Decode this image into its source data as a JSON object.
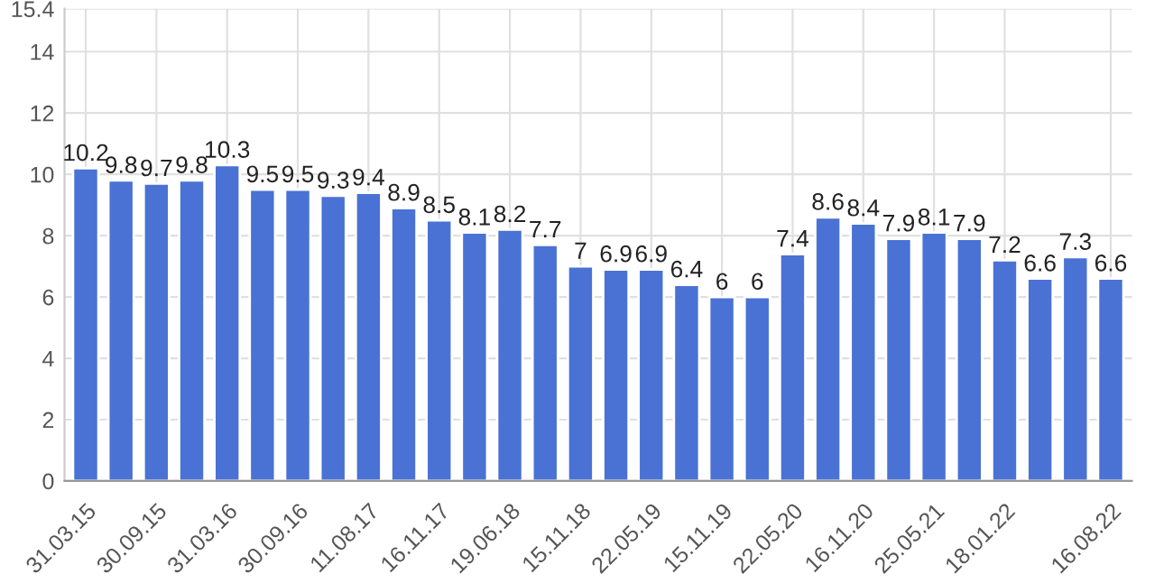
{
  "chart_data": {
    "type": "bar",
    "categories": [
      "31.03.15",
      null,
      "30.09.15",
      null,
      "31.03.16",
      null,
      "30.09.16",
      null,
      "11.08.17",
      null,
      "16.11.17",
      null,
      "19.06.18",
      null,
      "15.11.18",
      null,
      "22.05.19",
      null,
      "15.11.19",
      null,
      "22.05.20",
      null,
      "16.11.20",
      null,
      "25.05.21",
      null,
      "18.01.22",
      null,
      null,
      "16.08.22"
    ],
    "values": [
      10.2,
      9.8,
      9.7,
      9.8,
      10.3,
      9.5,
      9.5,
      9.3,
      9.4,
      8.9,
      8.5,
      8.1,
      8.2,
      7.7,
      7,
      6.9,
      6.9,
      6.4,
      6,
      6,
      7.4,
      8.6,
      8.4,
      7.9,
      8.1,
      7.9,
      7.2,
      6.6,
      7.3,
      6.6
    ],
    "color": "#4a72d4",
    "ylim": [
      0,
      15.4
    ],
    "yticks": [
      0,
      2,
      4,
      6,
      8,
      10,
      12,
      14,
      15.4
    ],
    "grid": true,
    "data_labels": true
  }
}
